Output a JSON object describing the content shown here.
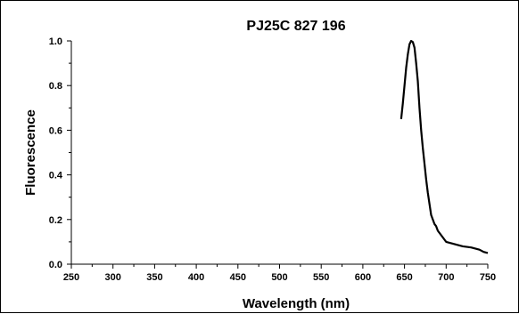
{
  "chart_data": {
    "type": "line",
    "title": "PJ25C 827 196",
    "xlabel": "Wavelength (nm)",
    "ylabel": "Fluorescence",
    "xlim": [
      250,
      750
    ],
    "ylim": [
      0.0,
      1.0
    ],
    "x_ticks": [
      "250",
      "300",
      "350",
      "400",
      "450",
      "500",
      "550",
      "600",
      "650",
      "700",
      "750"
    ],
    "y_ticks": [
      "0.0",
      "0.2",
      "0.4",
      "0.6",
      "0.8",
      "1.0"
    ],
    "grid": false,
    "colors": {
      "line": "#000000",
      "axis": "#000000"
    },
    "series": [
      {
        "points": [
          [
            646,
            0.65
          ],
          [
            648,
            0.72
          ],
          [
            650,
            0.8
          ],
          [
            652,
            0.88
          ],
          [
            654,
            0.94
          ],
          [
            656,
            0.985
          ],
          [
            658,
            1.0
          ],
          [
            660,
            0.995
          ],
          [
            662,
            0.97
          ],
          [
            664,
            0.9
          ],
          [
            666,
            0.82
          ],
          [
            668,
            0.7
          ],
          [
            670,
            0.6
          ],
          [
            672,
            0.52
          ],
          [
            674,
            0.45
          ],
          [
            676,
            0.38
          ],
          [
            678,
            0.32
          ],
          [
            680,
            0.27
          ],
          [
            682,
            0.22
          ],
          [
            684,
            0.2
          ],
          [
            686,
            0.18
          ],
          [
            688,
            0.17
          ],
          [
            690,
            0.15
          ],
          [
            692,
            0.14
          ],
          [
            694,
            0.13
          ],
          [
            696,
            0.12
          ],
          [
            698,
            0.11
          ],
          [
            700,
            0.1
          ],
          [
            705,
            0.095
          ],
          [
            710,
            0.09
          ],
          [
            720,
            0.08
          ],
          [
            730,
            0.075
          ],
          [
            740,
            0.065
          ],
          [
            745,
            0.055
          ],
          [
            750,
            0.05
          ]
        ]
      }
    ]
  }
}
